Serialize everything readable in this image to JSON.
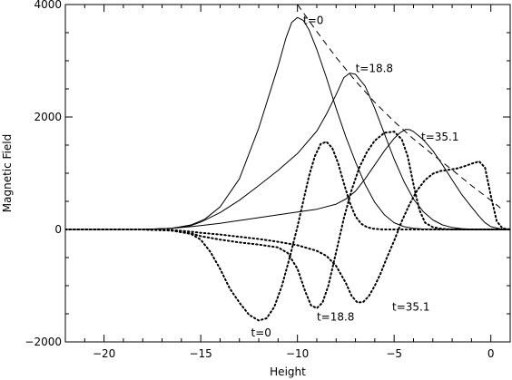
{
  "chart_data": {
    "type": "line",
    "xlabel": "Height",
    "ylabel": "Magnetic Field",
    "xlim": [
      -22,
      1
    ],
    "ylim": [
      -2000,
      4000
    ],
    "xticks": [
      -20,
      -15,
      -10,
      -5,
      0
    ],
    "xtick_labels": [
      "−20",
      "−15",
      "−10",
      "−5",
      "0"
    ],
    "yticks": [
      -2000,
      0,
      2000,
      4000
    ],
    "ytick_labels": [
      "−2000",
      "0",
      "2000",
      "4000"
    ],
    "grid": false,
    "legend": "none",
    "series": [
      {
        "style": "solid",
        "x": [
          -22,
          -18,
          -16.5,
          -15.5,
          -14.8,
          -14,
          -13,
          -12,
          -11,
          -10.6,
          -10.3,
          -10,
          -9.7,
          -9.4,
          -9,
          -8.5,
          -8,
          -7.5,
          -7,
          -6.5,
          -6,
          -5.5,
          -5,
          -4.5,
          -4,
          -3.5,
          -3,
          -2.5,
          -2,
          -1.5,
          -1,
          -0.5,
          0,
          0.5,
          1
        ],
        "y": [
          0,
          0,
          20,
          80,
          180,
          400,
          900,
          1800,
          2900,
          3400,
          3680,
          3770,
          3720,
          3550,
          3200,
          2700,
          2150,
          1650,
          1200,
          800,
          480,
          260,
          120,
          50,
          20,
          8,
          0,
          0,
          0,
          0,
          0,
          0,
          0,
          0,
          0
        ]
      },
      {
        "style": "solid",
        "x": [
          -22,
          -18,
          -16.5,
          -15.5,
          -15,
          -14,
          -13,
          -12,
          -11,
          -10,
          -9,
          -8.5,
          -8,
          -7.6,
          -7.3,
          -7,
          -6.5,
          -6,
          -5.5,
          -5,
          -4.5,
          -4,
          -3.5,
          -3,
          -2.5,
          -2,
          -1.5,
          -1,
          -0.5,
          0,
          0.5,
          1
        ],
        "y": [
          0,
          0,
          20,
          70,
          130,
          300,
          520,
          780,
          1050,
          1350,
          1750,
          2050,
          2400,
          2700,
          2780,
          2760,
          2550,
          2150,
          1700,
          1250,
          860,
          540,
          320,
          170,
          80,
          35,
          15,
          5,
          0,
          0,
          0,
          0
        ]
      },
      {
        "style": "solid",
        "x": [
          -22,
          -18,
          -16.5,
          -15.5,
          -15,
          -14,
          -13,
          -12,
          -11,
          -10,
          -9,
          -8,
          -7.5,
          -7,
          -6.5,
          -6,
          -5.5,
          -5,
          -4.7,
          -4.4,
          -4.2,
          -4,
          -3.5,
          -3,
          -2.5,
          -2,
          -1.5,
          -1,
          -0.6,
          -0.3,
          0,
          0.5,
          1
        ],
        "y": [
          0,
          0,
          20,
          50,
          70,
          110,
          160,
          210,
          260,
          310,
          360,
          450,
          540,
          680,
          900,
          1150,
          1400,
          1620,
          1720,
          1780,
          1775,
          1740,
          1600,
          1400,
          1150,
          880,
          620,
          400,
          230,
          120,
          50,
          10,
          0
        ]
      },
      {
        "style": "dashed",
        "x": [
          -10,
          -9,
          -8,
          -7,
          -6,
          -5,
          -4,
          -3,
          -2,
          -1,
          0,
          0.5
        ],
        "y": [
          4000,
          3520,
          3060,
          2640,
          2260,
          1920,
          1610,
          1330,
          1060,
          780,
          520,
          380
        ]
      },
      {
        "style": "dotted",
        "x": [
          -22,
          -18,
          -16.5,
          -15.5,
          -15,
          -14.5,
          -14,
          -13.5,
          -13,
          -12.5,
          -12,
          -11.6,
          -11.2,
          -10.8,
          -10.4,
          -10,
          -9.7,
          -9.4,
          -9.1,
          -8.8,
          -8.5,
          -8.2,
          -7.9,
          -7.6,
          -7.3,
          -7,
          -6.7,
          -6.4,
          -6.1,
          -5.8,
          -5.5,
          -5.2,
          -4.9,
          -4.5,
          -4,
          -3.5,
          -3,
          -2.5,
          -2,
          -1.5,
          -1,
          -0.5,
          0,
          0.5,
          1
        ],
        "y": [
          0,
          0,
          -20,
          -80,
          -180,
          -400,
          -700,
          -1050,
          -1300,
          -1520,
          -1620,
          -1580,
          -1380,
          -1000,
          -500,
          50,
          500,
          950,
          1300,
          1520,
          1560,
          1450,
          1180,
          820,
          480,
          230,
          100,
          40,
          15,
          5,
          0,
          0,
          0,
          0,
          0,
          0,
          0,
          0,
          0,
          0,
          0,
          0,
          0,
          0,
          0
        ]
      },
      {
        "style": "dotted",
        "x": [
          -22,
          -18,
          -16.5,
          -15.5,
          -15,
          -14,
          -13,
          -12,
          -11,
          -10.5,
          -10,
          -9.6,
          -9.3,
          -9,
          -8.7,
          -8.4,
          -8,
          -7.6,
          -7.2,
          -6.8,
          -6.4,
          -6,
          -5.5,
          -5,
          -4.6,
          -4.3,
          -4,
          -3.7,
          -3.4,
          -3,
          -2.5,
          -2,
          -1.5,
          -1,
          -0.5,
          0,
          0.5,
          1
        ],
        "y": [
          0,
          0,
          -20,
          -70,
          -120,
          -180,
          -230,
          -270,
          -320,
          -420,
          -700,
          -1100,
          -1350,
          -1400,
          -1300,
          -1000,
          -400,
          200,
          700,
          1100,
          1380,
          1580,
          1720,
          1740,
          1600,
          1300,
          800,
          350,
          120,
          40,
          10,
          0,
          0,
          0,
          0,
          0,
          0,
          0
        ]
      },
      {
        "style": "dotted",
        "x": [
          -22,
          -18,
          -16.5,
          -15.5,
          -15,
          -14,
          -13,
          -12,
          -11,
          -10,
          -9,
          -8.5,
          -8,
          -7.5,
          -7.2,
          -6.9,
          -6.6,
          -6.3,
          -6,
          -5.7,
          -5.4,
          -5,
          -4.6,
          -4.2,
          -3.8,
          -3.4,
          -3,
          -2.6,
          -2.2,
          -1.8,
          -1.4,
          -1,
          -0.6,
          -0.3,
          0,
          0.3,
          0.6,
          1
        ],
        "y": [
          0,
          0,
          -10,
          -40,
          -60,
          -90,
          -130,
          -170,
          -220,
          -280,
          -380,
          -470,
          -650,
          -950,
          -1180,
          -1300,
          -1290,
          -1180,
          -1000,
          -780,
          -520,
          -200,
          150,
          450,
          700,
          880,
          990,
          1040,
          1060,
          1080,
          1120,
          1170,
          1210,
          1100,
          600,
          150,
          20,
          0
        ]
      }
    ],
    "annotations": [
      {
        "text": "t=0",
        "x": -9.7,
        "y": 3650
      },
      {
        "text": "t=18.8",
        "x": -7.0,
        "y": 2800
      },
      {
        "text": "t=35.1",
        "x": -3.6,
        "y": 1580
      },
      {
        "text": "t=0",
        "x": -12.4,
        "y": -1900
      },
      {
        "text": "t=18.8",
        "x": -9.0,
        "y": -1620
      },
      {
        "text": "t=35.1",
        "x": -5.1,
        "y": -1440
      }
    ]
  }
}
